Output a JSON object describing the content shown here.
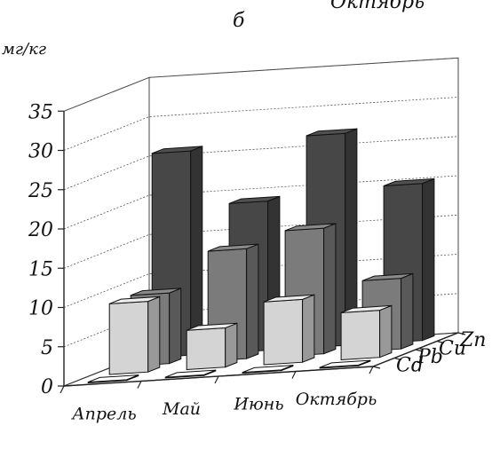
{
  "chart_data": {
    "type": "bar",
    "subtype": "3d-bar",
    "panel_label": "б",
    "top_cut_text": "Октябрь",
    "unit_label": "мг/кг",
    "categories": [
      "Апрель",
      "Май",
      "Июнь",
      "Октябрь"
    ],
    "series": [
      {
        "name": "Cd",
        "values": [
          0.1,
          0.1,
          0.1,
          0.1
        ],
        "color": "#efefef"
      },
      {
        "name": "Pb",
        "values": [
          9,
          5,
          8,
          6
        ],
        "color": "#d4d4d4"
      },
      {
        "name": "Cu",
        "values": [
          9,
          14,
          16,
          9
        ],
        "color": "#7b7b7b"
      },
      {
        "name": "Zn",
        "values": [
          26,
          19,
          27,
          20
        ],
        "color": "#474747"
      }
    ],
    "yticks": [
      "0",
      "5",
      "10",
      "15",
      "20",
      "25",
      "30",
      "35"
    ],
    "ylim": [
      0,
      35
    ],
    "grid": true
  }
}
